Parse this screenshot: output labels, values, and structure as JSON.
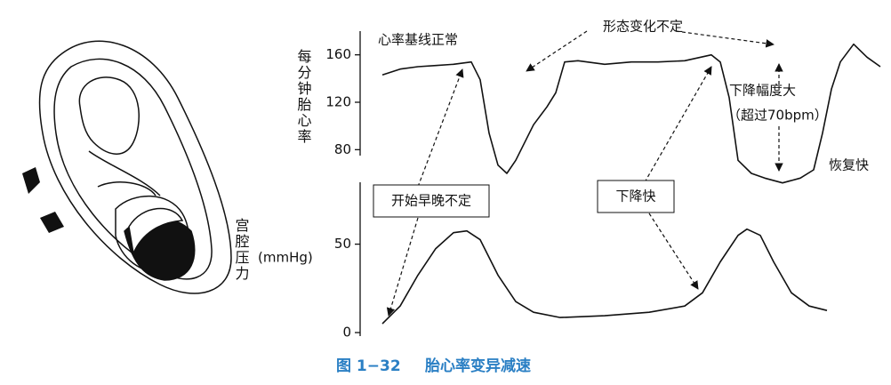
{
  "figure_label": "图 1−32",
  "caption": "胎心率变异减速",
  "chart_data": [
    {
      "type": "line",
      "y_label": "每分钟胎心率",
      "ylim": [
        75,
        180
      ],
      "yticks": [
        80,
        120,
        160
      ],
      "xlim": [
        0,
        580
      ],
      "annotations": [
        "心率基线正常",
        "形态变化不定",
        "下降幅度大",
        "（超过70bpm）",
        "恢复快",
        "开始早晚不定",
        "下降快"
      ],
      "series": [
        {
          "color": "#111111",
          "x": [
            0,
            20,
            40,
            60,
            80,
            100,
            110,
            120,
            130,
            140,
            150,
            160,
            170,
            185,
            195,
            205,
            220,
            250,
            280,
            310,
            340,
            370,
            380,
            390,
            400,
            415,
            430,
            450,
            470,
            485,
            495,
            505,
            515,
            530,
            545,
            560
          ],
          "values": [
            143,
            148,
            150,
            151,
            152,
            154,
            139,
            94,
            67,
            60,
            71,
            86,
            101,
            116,
            128,
            154,
            155,
            152,
            154,
            154,
            155,
            160,
            154,
            124,
            71,
            60,
            56,
            52,
            56,
            63,
            94,
            131,
            154,
            169,
            158,
            150
          ]
        }
      ]
    },
    {
      "type": "line",
      "y_label": "宫腔压力",
      "unit": "(mmHg)",
      "ylim": [
        -2,
        85
      ],
      "yticks": [
        0,
        50
      ],
      "xlim": [
        0,
        580
      ],
      "series": [
        {
          "color": "#111111",
          "x": [
            0,
            20,
            40,
            60,
            80,
            95,
            110,
            130,
            150,
            170,
            200,
            250,
            300,
            340,
            360,
            380,
            400,
            410,
            425,
            440,
            460,
            480,
            500
          ],
          "values": [
            5,
            15,
            32.5,
            47.5,
            56.5,
            57.5,
            52.5,
            32.5,
            17.5,
            11.5,
            8.5,
            9.5,
            11.5,
            15,
            22.5,
            40,
            55,
            58.5,
            55,
            40,
            22.5,
            15,
            12.5
          ]
        }
      ]
    }
  ]
}
